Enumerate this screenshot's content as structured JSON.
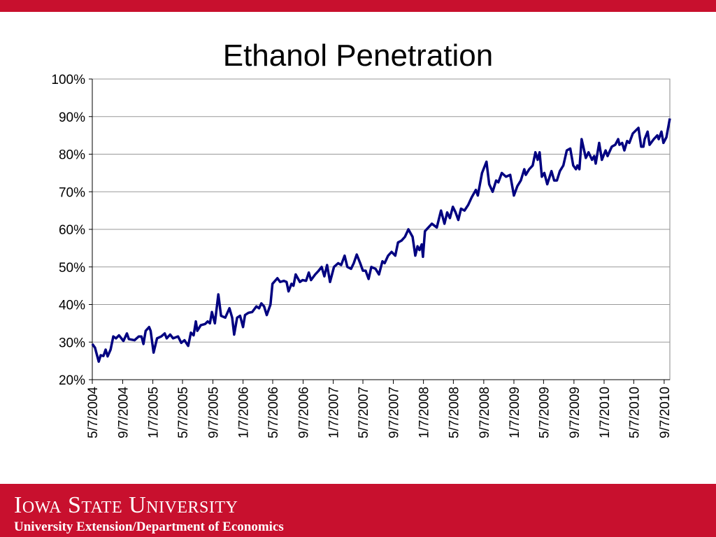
{
  "chart_data": {
    "type": "line",
    "title": "Ethanol Penetration",
    "x": [
      "2004-05-07",
      "2004-05-18",
      "2004-06-02",
      "2004-06-10",
      "2004-06-21",
      "2004-06-30",
      "2004-07-08",
      "2004-07-20",
      "2004-07-31",
      "2004-08-11",
      "2004-08-23",
      "2004-09-10",
      "2004-09-24",
      "2004-10-02",
      "2004-10-25",
      "2004-11-11",
      "2004-11-22",
      "2004-11-30",
      "2004-12-09",
      "2004-12-23",
      "2004-12-29",
      "2005-01-10",
      "2005-01-24",
      "2005-02-10",
      "2005-02-24",
      "2005-03-04",
      "2005-03-18",
      "2005-03-30",
      "2005-04-19",
      "2005-05-02",
      "2005-05-15",
      "2005-05-30",
      "2005-06-10",
      "2005-06-21",
      "2005-06-30",
      "2005-07-06",
      "2005-07-20",
      "2005-08-06",
      "2005-08-17",
      "2005-08-26",
      "2005-09-03",
      "2005-09-15",
      "2005-09-29",
      "2005-10-10",
      "2005-10-27",
      "2005-11-13",
      "2005-11-24",
      "2005-12-02",
      "2005-12-14",
      "2005-12-26",
      "2006-01-07",
      "2006-01-15",
      "2006-01-29",
      "2006-02-13",
      "2006-03-02",
      "2006-03-13",
      "2006-03-22",
      "2006-04-02",
      "2006-04-13",
      "2006-04-28",
      "2006-05-06",
      "2006-05-26",
      "2006-06-06",
      "2006-06-21",
      "2006-07-02",
      "2006-07-10",
      "2006-07-22",
      "2006-07-30",
      "2006-08-08",
      "2006-08-25",
      "2006-09-05",
      "2006-09-19",
      "2006-09-30",
      "2006-10-09",
      "2006-10-26",
      "2006-11-09",
      "2006-11-21",
      "2006-12-02",
      "2006-12-13",
      "2006-12-25",
      "2007-01-10",
      "2007-01-27",
      "2007-02-08",
      "2007-02-22",
      "2007-03-05",
      "2007-03-20",
      "2007-03-31",
      "2007-04-12",
      "2007-04-26",
      "2007-05-07",
      "2007-05-18",
      "2007-05-30",
      "2007-06-10",
      "2007-06-27",
      "2007-07-11",
      "2007-07-25",
      "2007-08-03",
      "2007-08-17",
      "2007-08-31",
      "2007-09-15",
      "2007-09-26",
      "2007-10-10",
      "2007-10-24",
      "2007-11-07",
      "2007-11-24",
      "2007-12-05",
      "2007-12-14",
      "2007-12-22",
      "2007-12-31",
      "2008-01-05",
      "2008-01-13",
      "2008-02-10",
      "2008-03-01",
      "2008-03-18",
      "2008-04-01",
      "2008-04-12",
      "2008-04-23",
      "2008-05-05",
      "2008-05-16",
      "2008-05-27",
      "2008-06-07",
      "2008-06-21",
      "2008-07-06",
      "2008-07-20",
      "2008-08-06",
      "2008-08-14",
      "2008-08-31",
      "2008-09-18",
      "2008-09-29",
      "2008-10-13",
      "2008-10-27",
      "2008-11-05",
      "2008-11-19",
      "2008-12-06",
      "2008-12-23",
      "2009-01-07",
      "2009-01-21",
      "2009-02-04",
      "2009-02-18",
      "2009-02-24",
      "2009-03-10",
      "2009-03-24",
      "2009-04-04",
      "2009-04-13",
      "2009-04-21",
      "2009-04-30",
      "2009-05-10",
      "2009-05-22",
      "2009-06-08",
      "2009-06-19",
      "2009-06-30",
      "2009-07-12",
      "2009-07-26",
      "2009-08-09",
      "2009-08-23",
      "2009-09-04",
      "2009-09-15",
      "2009-09-21",
      "2009-09-29",
      "2009-10-08",
      "2009-10-25",
      "2009-11-05",
      "2009-11-19",
      "2009-11-28",
      "2009-12-04",
      "2009-12-18",
      "2009-12-29",
      "2010-01-13",
      "2010-01-21",
      "2010-02-07",
      "2010-02-21",
      "2010-03-05",
      "2010-03-10",
      "2010-03-21",
      "2010-03-30",
      "2010-04-10",
      "2010-04-19",
      "2010-05-03",
      "2010-05-26",
      "2010-06-06",
      "2010-06-15",
      "2010-06-20",
      "2010-07-02",
      "2010-07-10",
      "2010-07-27",
      "2010-08-10",
      "2010-08-16",
      "2010-08-27",
      "2010-09-04",
      "2010-09-16",
      "2010-09-30"
    ],
    "values": [
      29.5,
      28.5,
      24.8,
      26.5,
      26.3,
      28,
      26.2,
      28,
      31.5,
      31,
      31.8,
      30.3,
      32.3,
      30.8,
      30.5,
      31.5,
      31.5,
      29.5,
      33,
      34,
      33,
      27.2,
      31,
      31.5,
      32.3,
      31,
      32,
      31,
      31.5,
      29.8,
      30.5,
      29,
      32.5,
      31.8,
      35.5,
      33,
      34.5,
      34.8,
      35.5,
      35,
      38,
      35,
      42.7,
      37,
      36.5,
      39,
      36.5,
      32,
      36.5,
      37,
      34,
      37.2,
      37.8,
      38,
      39.5,
      39,
      40.3,
      39.5,
      37.2,
      40,
      45.5,
      47,
      46,
      46.3,
      46,
      43.5,
      45.5,
      45,
      48,
      46,
      46.5,
      46.3,
      48.5,
      46.5,
      48,
      49,
      50,
      47.5,
      50.5,
      46,
      50,
      51,
      50.5,
      53,
      50,
      49.5,
      51,
      53.3,
      51,
      49,
      49,
      46.8,
      50,
      49.5,
      48,
      51.5,
      51,
      53,
      54,
      53,
      56.5,
      57,
      58,
      60,
      58,
      53,
      55.5,
      54.5,
      56,
      52.7,
      59.5,
      61.5,
      60.5,
      65,
      61.5,
      64.5,
      63,
      66,
      64.5,
      62.5,
      65.5,
      65,
      66.5,
      68.5,
      70.5,
      69,
      75,
      78,
      72,
      70,
      73,
      72.5,
      75,
      74,
      74.5,
      69,
      71.5,
      73,
      76,
      74.5,
      76,
      77,
      80.5,
      78.5,
      80.5,
      74,
      75,
      72,
      75.5,
      73,
      73,
      75.5,
      77,
      81,
      81.5,
      77,
      76,
      77,
      76,
      84,
      79,
      80.5,
      78.5,
      79.5,
      77.5,
      83,
      78.5,
      81,
      79.5,
      82,
      82.5,
      84,
      82.5,
      83,
      81,
      83.5,
      83,
      85.5,
      87,
      82,
      82,
      84,
      86,
      82.5,
      84,
      85,
      84,
      86,
      83,
      84.5,
      89.5
    ],
    "color": "#000080",
    "xlim": [
      "2004-05-07",
      "2010-09-30"
    ],
    "xticks": [
      {
        "value": "2004-05-07",
        "label": "5/7/2004"
      },
      {
        "value": "2004-09-07",
        "label": "9/7/2004"
      },
      {
        "value": "2005-01-07",
        "label": "1/7/2005"
      },
      {
        "value": "2005-05-07",
        "label": "5/7/2005"
      },
      {
        "value": "2005-09-07",
        "label": "9/7/2005"
      },
      {
        "value": "2006-01-07",
        "label": "1/7/2006"
      },
      {
        "value": "2006-05-07",
        "label": "5/7/2006"
      },
      {
        "value": "2006-09-07",
        "label": "9/7/2006"
      },
      {
        "value": "2007-01-07",
        "label": "1/7/2007"
      },
      {
        "value": "2007-05-07",
        "label": "5/7/2007"
      },
      {
        "value": "2007-09-07",
        "label": "9/7/2007"
      },
      {
        "value": "2008-01-07",
        "label": "1/7/2008"
      },
      {
        "value": "2008-05-07",
        "label": "5/7/2008"
      },
      {
        "value": "2008-09-07",
        "label": "9/7/2008"
      },
      {
        "value": "2009-01-07",
        "label": "1/7/2009"
      },
      {
        "value": "2009-05-07",
        "label": "5/7/2009"
      },
      {
        "value": "2009-09-07",
        "label": "9/7/2009"
      },
      {
        "value": "2010-01-07",
        "label": "1/7/2010"
      },
      {
        "value": "2010-05-07",
        "label": "5/7/2010"
      },
      {
        "value": "2010-09-07",
        "label": "9/7/2010"
      }
    ],
    "ylim": [
      20,
      100
    ],
    "yticks": [
      {
        "value": 20,
        "label": "20%"
      },
      {
        "value": 30,
        "label": "30%"
      },
      {
        "value": 40,
        "label": "40%"
      },
      {
        "value": 50,
        "label": "50%"
      },
      {
        "value": 60,
        "label": "60%"
      },
      {
        "value": 70,
        "label": "70%"
      },
      {
        "value": 80,
        "label": "80%"
      },
      {
        "value": 90,
        "label": "90%"
      },
      {
        "value": 100,
        "label": "100%"
      }
    ],
    "grid": true
  },
  "footer": {
    "university": "Iowa State University",
    "department": "University Extension/Department of Economics"
  }
}
